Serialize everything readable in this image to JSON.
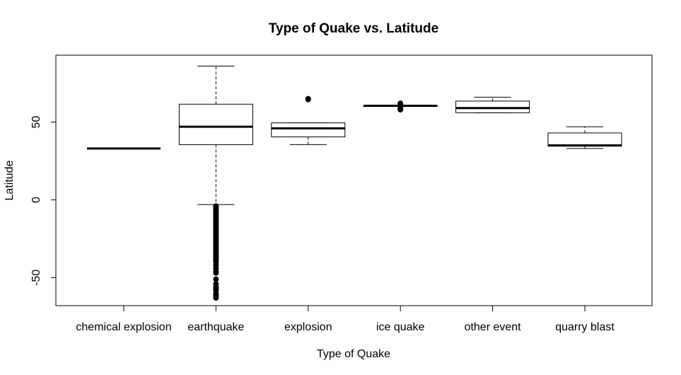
{
  "chart_data": {
    "type": "boxplot",
    "title": "Type of Quake vs. Latitude",
    "xlabel": "Type of Quake",
    "ylabel": "Latitude",
    "ylim": [
      -68,
      93
    ],
    "yticks": [
      -50,
      0,
      50
    ],
    "yticklabels": [
      "-50",
      "0",
      "50"
    ],
    "categories": [
      "chemical explosion",
      "earthquake",
      "explosion",
      "ice quake",
      "other event",
      "quarry blast"
    ],
    "boxes": [
      {
        "category": "chemical explosion",
        "whisker_low": 33,
        "q1": 33,
        "median": 33,
        "q3": 33,
        "whisker_high": 33,
        "outliers": []
      },
      {
        "category": "earthquake",
        "whisker_low": -3,
        "q1": 35.5,
        "median": 47,
        "q3": 61.5,
        "whisker_high": 86,
        "outliers": [
          -4,
          -5,
          -6,
          -7,
          -8,
          -9,
          -10,
          -11,
          -12,
          -13,
          -14,
          -15,
          -16,
          -17,
          -18,
          -19,
          -20,
          -21,
          -22,
          -23,
          -24,
          -25,
          -26,
          -27,
          -28,
          -29,
          -30,
          -31,
          -32,
          -33,
          -34,
          -35,
          -36,
          -37,
          -38,
          -39,
          -40,
          -42,
          -44,
          -46,
          -47,
          -51,
          -54,
          -56,
          -57,
          -58,
          -60,
          -61,
          -62,
          -63
        ]
      },
      {
        "category": "explosion",
        "whisker_low": 35.5,
        "q1": 40.5,
        "median": 46,
        "q3": 49.5,
        "whisker_high": 49.5,
        "outliers": [
          64.5,
          65
        ]
      },
      {
        "category": "ice quake",
        "whisker_low": 60,
        "q1": 60,
        "median": 60.5,
        "q3": 60.5,
        "whisker_high": 60.5,
        "outliers": [
          58,
          59,
          61,
          61.5,
          62
        ]
      },
      {
        "category": "other event",
        "whisker_low": 56,
        "q1": 56,
        "median": 59,
        "q3": 63.5,
        "whisker_high": 66,
        "outliers": []
      },
      {
        "category": "quarry blast",
        "whisker_low": 33,
        "q1": 34.5,
        "median": 35,
        "q3": 43,
        "whisker_high": 47,
        "outliers": []
      }
    ],
    "grid": false,
    "legend": "none"
  }
}
